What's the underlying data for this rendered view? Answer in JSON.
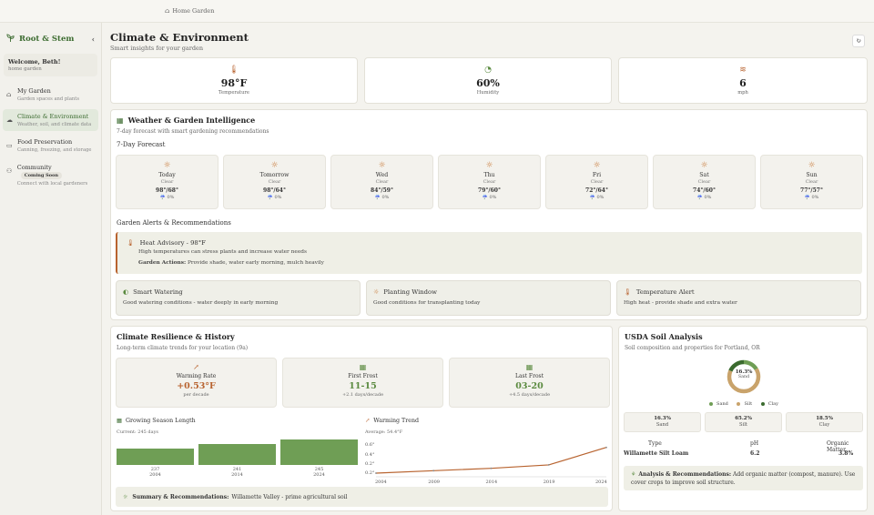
{
  "breadcrumb": {
    "icon": "home-icon",
    "label": "Home Garden"
  },
  "sidebar": {
    "brand": "Root & Stem",
    "welcome": "Welcome, Beth!",
    "garden": "home garden",
    "items": [
      {
        "label": "My Garden",
        "desc": "Garden spaces and plants",
        "icon": "house-icon"
      },
      {
        "label": "Climate & Environment",
        "desc": "Weather, soil, and climate data",
        "icon": "cloud-icon"
      },
      {
        "label": "Food Preservation",
        "desc": "Canning, freezing, and storage",
        "icon": "jar-icon"
      },
      {
        "label": "Community",
        "desc": "Connect with local gardeners",
        "badge": "Coming Soon",
        "icon": "people-icon"
      }
    ]
  },
  "page": {
    "title": "Climate & Environment",
    "subtitle": "Smart insights for your garden"
  },
  "stats": [
    {
      "value": "98°F",
      "label": "Temperature",
      "icon": "thermometer-icon"
    },
    {
      "value": "60%",
      "label": "Humidity",
      "icon": "humidity-icon"
    },
    {
      "value": "6",
      "label": "mph",
      "icon": "wind-icon"
    }
  ],
  "weather": {
    "title": "Weather & Garden Intelligence",
    "subtitle": "7-day forecast with smart gardening recommendations",
    "forecast_title": "7-Day Forecast",
    "days": [
      {
        "name": "Today",
        "cond": "Clear",
        "temp": "98°/68°",
        "precip": "☔ 0%"
      },
      {
        "name": "Tomorrow",
        "cond": "Clear",
        "temp": "98°/64°",
        "precip": "☔ 0%"
      },
      {
        "name": "Wed",
        "cond": "Clear",
        "temp": "84°/59°",
        "precip": "☔ 0%"
      },
      {
        "name": "Thu",
        "cond": "Clear",
        "temp": "79°/60°",
        "precip": "☔ 0%"
      },
      {
        "name": "Fri",
        "cond": "Clear",
        "temp": "72°/64°",
        "precip": "☔ 0%"
      },
      {
        "name": "Sat",
        "cond": "Clear",
        "temp": "74°/60°",
        "precip": "☔ 0%"
      },
      {
        "name": "Sun",
        "cond": "Clear",
        "temp": "77°/57°",
        "precip": "☔ 0%"
      }
    ],
    "alerts_title": "Garden Alerts & Recommendations",
    "alert": {
      "title": "Heat Advisory - 98°F",
      "desc": "High temperatures can stress plants and increase water needs",
      "actions_label": "Garden Actions:",
      "actions": "Provide shade, water early morning, mulch heavily"
    },
    "recs": [
      {
        "title": "Smart Watering",
        "desc": "Good watering conditions - water deeply in early morning",
        "icon": "water-icon"
      },
      {
        "title": "Planting Window",
        "desc": "Good conditions for transplanting today",
        "icon": "sun-icon"
      },
      {
        "title": "Temperature Alert",
        "desc": "High heat - provide shade and extra water",
        "icon": "thermometer-icon"
      }
    ]
  },
  "climate": {
    "title": "Climate Resilience & History",
    "subtitle": "Long-term climate trends for your location (9a)",
    "cards": [
      {
        "label": "Warming Rate",
        "value": "+0.53°F",
        "desc": "per decade",
        "color": "#b8632f"
      },
      {
        "label": "First Frost",
        "value": "11-15",
        "desc": "+2.1 days/decade",
        "color": "#5a8a3f"
      },
      {
        "label": "Last Frost",
        "value": "03-20",
        "desc": "+4.5 days/decade",
        "color": "#5a8a3f"
      }
    ],
    "season_title": "Growing Season Length",
    "season_current": "Current: 245 days",
    "warming_title": "Warming Trend",
    "warming_avg": "Average: 54.4°F",
    "summary_label": "Summary & Recommendations:",
    "summary_text": "Willamette Valley - prime agricultural soil"
  },
  "soil": {
    "title": "USDA Soil Analysis",
    "subtitle": "Soil composition and properties for Portland, OR",
    "donut_value": "16.3%",
    "donut_label": "Sand",
    "legend": [
      "Sand",
      "Silt",
      "Clay"
    ],
    "boxes": [
      {
        "value": "16.3%",
        "label": "Sand"
      },
      {
        "value": "65.2%",
        "label": "Silt"
      },
      {
        "value": "18.5%",
        "label": "Clay"
      }
    ],
    "type_label": "Type",
    "type_value": "Willamette Silt Loam",
    "ph_label": "pH",
    "ph_value": "6.2",
    "om_label": "Organic Matter",
    "om_value": "3.8%",
    "analysis_label": "Analysis & Recommendations:",
    "analysis_text": "Add organic matter (compost, manure). Use cover crops to improve soil structure.",
    "colors": {
      "sand": "#6f9e55",
      "silt": "#c9a36b",
      "clay": "#3b6b2f"
    }
  },
  "chart_data": [
    {
      "type": "bar",
      "title": "Growing Season Length",
      "categories": [
        "2004",
        "2014",
        "2024"
      ],
      "values": [
        237,
        241,
        245
      ],
      "value_labels": [
        "237",
        "241",
        "245"
      ]
    },
    {
      "type": "line",
      "title": "Warming Trend",
      "x": [
        2004,
        2009,
        2014,
        2019,
        2024
      ],
      "y": [
        0.0,
        0.05,
        0.1,
        0.17,
        0.53
      ],
      "yticks": [
        "0.6°",
        "0.4°",
        "0.2°",
        "0.2°"
      ],
      "xticks": [
        "2004",
        "2009",
        "2014",
        "2019",
        "2024"
      ],
      "ylim": [
        0,
        0.6
      ]
    },
    {
      "type": "pie",
      "title": "Soil composition",
      "categories": [
        "Sand",
        "Silt",
        "Clay"
      ],
      "values": [
        16.3,
        65.2,
        18.5
      ]
    }
  ]
}
